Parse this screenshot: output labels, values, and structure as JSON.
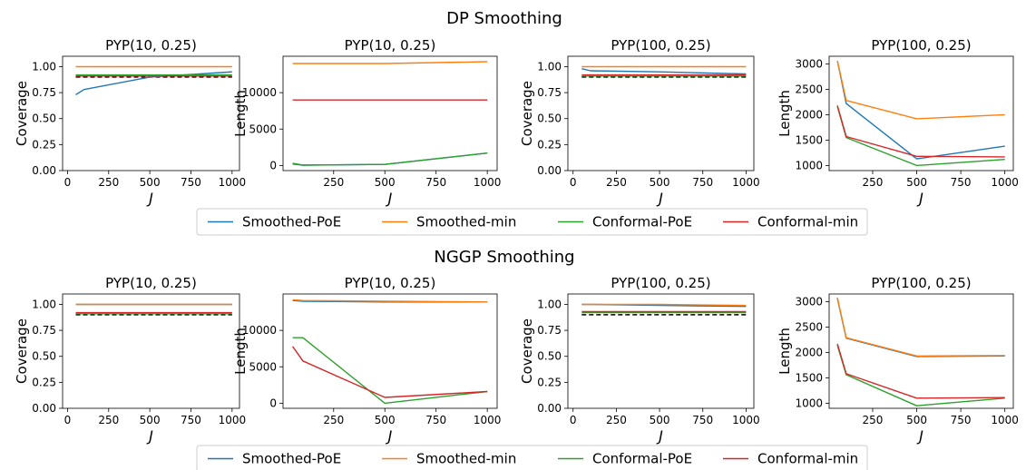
{
  "figure": {
    "colors": {
      "Smoothed-PoE": "#1f77b4",
      "Smoothed-min": "#ff7f0e",
      "Conformal-PoE": "#2ca02c",
      "Conformal-min": "#d62728",
      "target": "#000000"
    },
    "legend": {
      "placement": "below each row, centered",
      "entries": [
        "Smoothed-PoE",
        "Smoothed-min",
        "Conformal-PoE",
        "Conformal-min"
      ]
    },
    "rows": [
      {
        "title": "DP Smoothing"
      },
      {
        "title": "NGGP Smoothing"
      }
    ]
  },
  "chart_data": [
    {
      "type": "line",
      "row": 0,
      "title": "PYP(10, 0.25)",
      "xlabel": "J",
      "ylabel": "Coverage",
      "xlim": [
        -30,
        1045
      ],
      "ylim": [
        0,
        1.1
      ],
      "xticks": [
        0,
        250,
        500,
        750,
        1000
      ],
      "yticks": [
        0.0,
        0.25,
        0.5,
        0.75,
        1.0
      ],
      "ytick_decimals": 2,
      "hline": 0.9,
      "x": [
        50,
        100,
        500,
        1000
      ],
      "series": [
        {
          "name": "Smoothed-PoE",
          "values": [
            0.73,
            0.78,
            0.9,
            0.95
          ]
        },
        {
          "name": "Smoothed-min",
          "values": [
            1.0,
            1.0,
            1.0,
            1.0
          ]
        },
        {
          "name": "Conformal-PoE",
          "values": [
            0.92,
            0.92,
            0.92,
            0.92
          ]
        },
        {
          "name": "Conformal-min",
          "values": [
            0.91,
            0.91,
            0.91,
            0.91
          ]
        }
      ]
    },
    {
      "type": "line",
      "row": 0,
      "title": "PYP(10, 0.25)",
      "xlabel": "J",
      "ylabel": "Length",
      "xlim": [
        3,
        1048
      ],
      "ylim": [
        -700,
        15000
      ],
      "xticks": [
        250,
        500,
        750,
        1000
      ],
      "yticks": [
        0,
        5000,
        10000
      ],
      "ytick_decimals": 0,
      "x": [
        50,
        100,
        500,
        1000
      ],
      "series": [
        {
          "name": "Smoothed-PoE",
          "values": [
            200,
            50,
            150,
            1700
          ]
        },
        {
          "name": "Smoothed-min",
          "values": [
            14000,
            14000,
            14000,
            14250
          ]
        },
        {
          "name": "Conformal-PoE",
          "values": [
            300,
            50,
            150,
            1700
          ]
        },
        {
          "name": "Conformal-min",
          "values": [
            9000,
            9000,
            9000,
            9000
          ]
        }
      ]
    },
    {
      "type": "line",
      "row": 0,
      "title": "PYP(100, 0.25)",
      "xlabel": "J",
      "ylabel": "Coverage",
      "xlim": [
        -30,
        1045
      ],
      "ylim": [
        0,
        1.1
      ],
      "xticks": [
        0,
        250,
        500,
        750,
        1000
      ],
      "yticks": [
        0.0,
        0.25,
        0.5,
        0.75,
        1.0
      ],
      "ytick_decimals": 2,
      "hline": 0.9,
      "x": [
        50,
        100,
        500,
        1000
      ],
      "series": [
        {
          "name": "Smoothed-PoE",
          "values": [
            0.98,
            0.96,
            0.95,
            0.93
          ]
        },
        {
          "name": "Smoothed-min",
          "values": [
            1.0,
            1.0,
            1.0,
            1.0
          ]
        },
        {
          "name": "Conformal-PoE",
          "values": [
            0.91,
            0.91,
            0.91,
            0.91
          ]
        },
        {
          "name": "Conformal-min",
          "values": [
            0.92,
            0.92,
            0.92,
            0.92
          ]
        }
      ]
    },
    {
      "type": "line",
      "row": 0,
      "title": "PYP(100, 0.25)",
      "xlabel": "J",
      "ylabel": "Length",
      "xlim": [
        3,
        1048
      ],
      "ylim": [
        900,
        3150
      ],
      "xticks": [
        250,
        500,
        750,
        1000
      ],
      "yticks": [
        1000,
        1500,
        2000,
        2500,
        3000
      ],
      "ytick_decimals": 0,
      "x": [
        50,
        100,
        500,
        1000
      ],
      "series": [
        {
          "name": "Smoothed-PoE",
          "values": [
            3060,
            2220,
            1130,
            1380
          ]
        },
        {
          "name": "Smoothed-min",
          "values": [
            3060,
            2280,
            1920,
            2000
          ]
        },
        {
          "name": "Conformal-PoE",
          "values": [
            2160,
            1550,
            1000,
            1120
          ]
        },
        {
          "name": "Conformal-min",
          "values": [
            2180,
            1570,
            1180,
            1170
          ]
        }
      ]
    },
    {
      "type": "line",
      "row": 1,
      "title": "PYP(10, 0.25)",
      "xlabel": "J",
      "ylabel": "Coverage",
      "xlim": [
        -30,
        1045
      ],
      "ylim": [
        0,
        1.1
      ],
      "xticks": [
        0,
        250,
        500,
        750,
        1000
      ],
      "yticks": [
        0.0,
        0.25,
        0.5,
        0.75,
        1.0
      ],
      "ytick_decimals": 2,
      "hline": 0.9,
      "x": [
        50,
        100,
        500,
        1000
      ],
      "series": [
        {
          "name": "Smoothed-PoE",
          "values": [
            1.0,
            1.0,
            1.0,
            1.0
          ]
        },
        {
          "name": "Smoothed-min",
          "values": [
            1.0,
            1.0,
            1.0,
            1.0
          ]
        },
        {
          "name": "Conformal-PoE",
          "values": [
            0.91,
            0.91,
            0.91,
            0.91
          ]
        },
        {
          "name": "Conformal-min",
          "values": [
            0.92,
            0.92,
            0.92,
            0.92
          ]
        }
      ]
    },
    {
      "type": "line",
      "row": 1,
      "title": "PYP(10, 0.25)",
      "xlabel": "J",
      "ylabel": "Length",
      "xlim": [
        3,
        1048
      ],
      "ylim": [
        -700,
        15000
      ],
      "xticks": [
        250,
        500,
        750,
        1000
      ],
      "yticks": [
        0,
        5000,
        10000
      ],
      "ytick_decimals": 0,
      "x": [
        50,
        100,
        500,
        1000
      ],
      "series": [
        {
          "name": "Smoothed-PoE",
          "values": [
            14100,
            14000,
            13900,
            13900
          ]
        },
        {
          "name": "Smoothed-min",
          "values": [
            14200,
            14100,
            14000,
            13900
          ]
        },
        {
          "name": "Conformal-PoE",
          "values": [
            9000,
            9000,
            0,
            1600
          ]
        },
        {
          "name": "Conformal-min",
          "values": [
            7800,
            5800,
            800,
            1600
          ]
        }
      ]
    },
    {
      "type": "line",
      "row": 1,
      "title": "PYP(100, 0.25)",
      "xlabel": "J",
      "ylabel": "Coverage",
      "xlim": [
        -30,
        1045
      ],
      "ylim": [
        0,
        1.1
      ],
      "xticks": [
        0,
        250,
        500,
        750,
        1000
      ],
      "yticks": [
        0.0,
        0.25,
        0.5,
        0.75,
        1.0
      ],
      "ytick_decimals": 2,
      "hline": 0.9,
      "x": [
        50,
        100,
        500,
        1000
      ],
      "series": [
        {
          "name": "Smoothed-PoE",
          "values": [
            1.0,
            1.0,
            0.99,
            0.98
          ]
        },
        {
          "name": "Smoothed-min",
          "values": [
            1.0,
            1.0,
            1.0,
            0.99
          ]
        },
        {
          "name": "Conformal-PoE",
          "values": [
            0.92,
            0.92,
            0.92,
            0.92
          ]
        },
        {
          "name": "Conformal-min",
          "values": [
            0.93,
            0.93,
            0.93,
            0.93
          ]
        }
      ]
    },
    {
      "type": "line",
      "row": 1,
      "title": "PYP(100, 0.25)",
      "xlabel": "J",
      "ylabel": "Length",
      "xlim": [
        3,
        1048
      ],
      "ylim": [
        900,
        3150
      ],
      "xticks": [
        250,
        500,
        750,
        1000
      ],
      "yticks": [
        1000,
        1500,
        2000,
        2500,
        3000
      ],
      "ytick_decimals": 0,
      "x": [
        50,
        100,
        500,
        1000
      ],
      "series": [
        {
          "name": "Smoothed-PoE",
          "values": [
            3060,
            2280,
            1920,
            1930
          ]
        },
        {
          "name": "Smoothed-min",
          "values": [
            3080,
            2290,
            1930,
            1940
          ]
        },
        {
          "name": "Conformal-PoE",
          "values": [
            2140,
            1560,
            950,
            1100
          ]
        },
        {
          "name": "Conformal-min",
          "values": [
            2170,
            1580,
            1100,
            1110
          ]
        }
      ]
    }
  ]
}
